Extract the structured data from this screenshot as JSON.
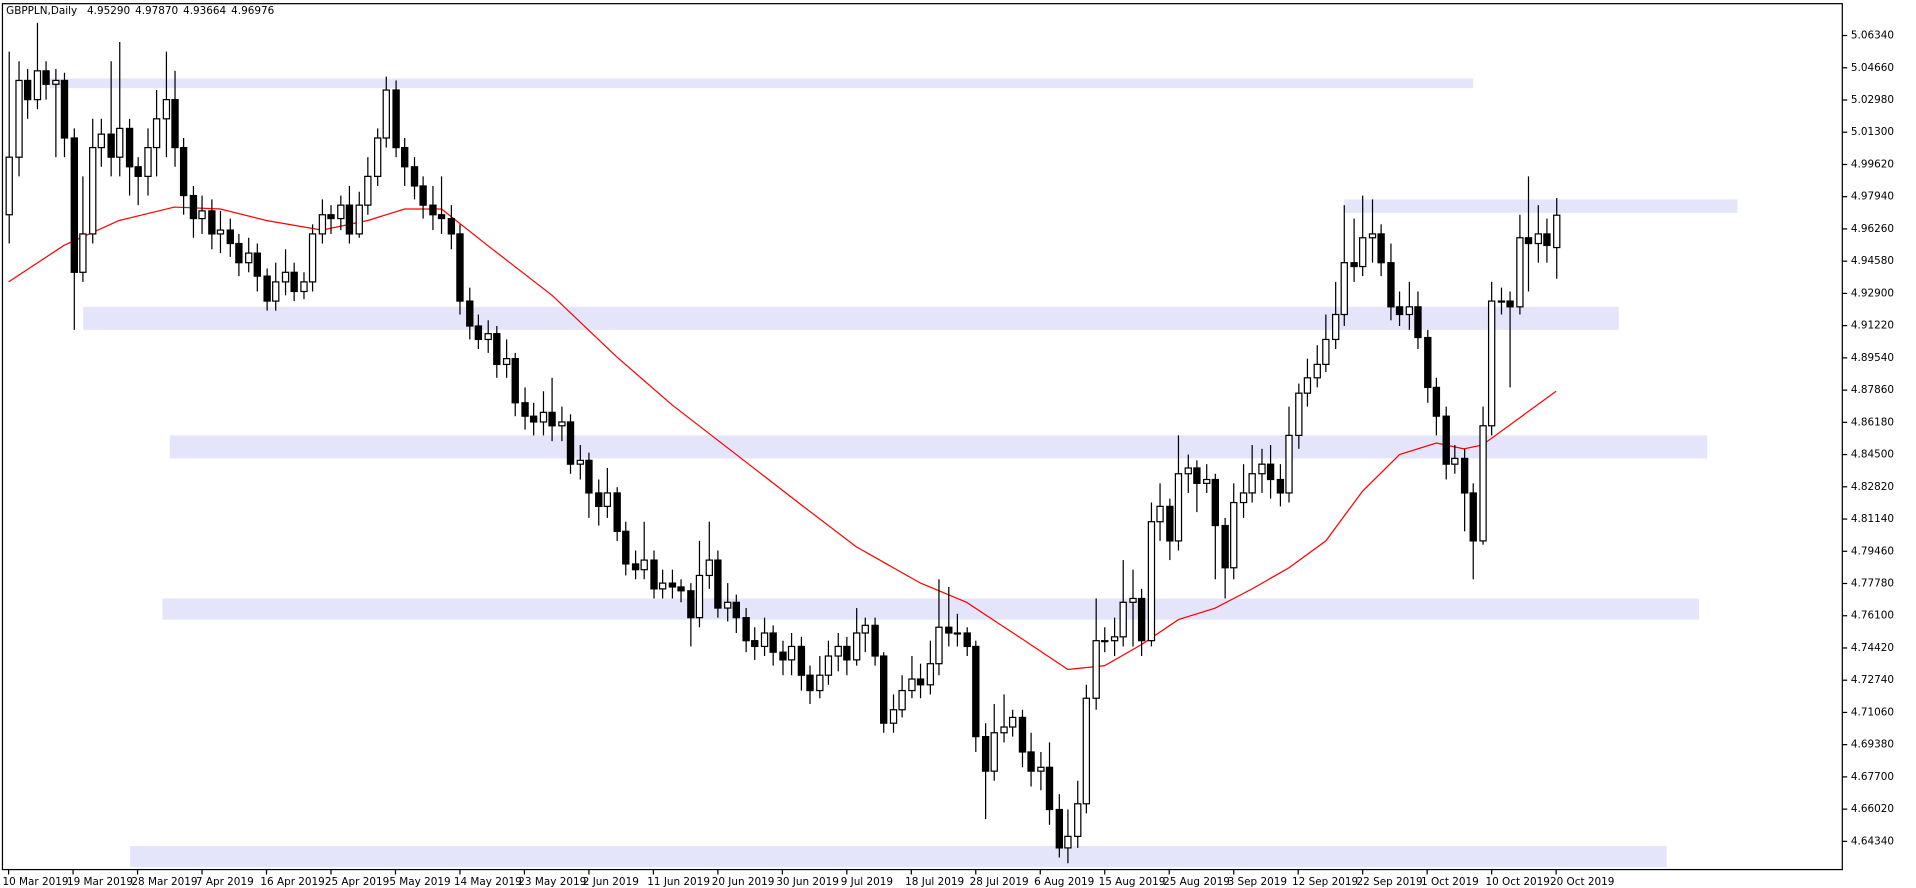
{
  "chart_data": {
    "type": "candlestick",
    "title": "GBPPLN,Daily",
    "header_values": [
      {
        "value": 4.9529,
        "label": "4.95290"
      },
      {
        "value": 4.9787,
        "label": "4.97870"
      },
      {
        "value": 4.93664,
        "label": "4.93664"
      },
      {
        "value": 4.96976,
        "label": "4.96976"
      }
    ],
    "up_color": "#ffffff",
    "down_color": "#000000",
    "outline_color": "#000000",
    "xlim": [
      -0.667,
      199.07
    ],
    "ylim": [
      4.6287,
      5.08
    ],
    "xticks": [
      {
        "value": 0,
        "label": "10 Mar 2019"
      },
      {
        "value": 7,
        "label": "19 Mar 2019"
      },
      {
        "value": 14,
        "label": "28 Mar 2019"
      },
      {
        "value": 21,
        "label": "7 Apr 2019"
      },
      {
        "value": 28,
        "label": "16 Apr 2019"
      },
      {
        "value": 35,
        "label": "25 Apr 2019"
      },
      {
        "value": 42,
        "label": "5 May 2019"
      },
      {
        "value": 49,
        "label": "14 May 2019"
      },
      {
        "value": 56,
        "label": "23 May 2019"
      },
      {
        "value": 63,
        "label": "2 Jun 2019"
      },
      {
        "value": 70,
        "label": "11 Jun 2019"
      },
      {
        "value": 77,
        "label": "20 Jun 2019"
      },
      {
        "value": 84,
        "label": "30 Jun 2019"
      },
      {
        "value": 91,
        "label": "9 Jul 2019"
      },
      {
        "value": 98,
        "label": "18 Jul 2019"
      },
      {
        "value": 105,
        "label": "28 Jul 2019"
      },
      {
        "value": 112,
        "label": "6 Aug 2019"
      },
      {
        "value": 119,
        "label": "15 Aug 2019"
      },
      {
        "value": 126,
        "label": "25 Aug 2019"
      },
      {
        "value": 133,
        "label": "3 Sep 2019"
      },
      {
        "value": 140,
        "label": "12 Sep 2019"
      },
      {
        "value": 147,
        "label": "22 Sep 2019"
      },
      {
        "value": 154,
        "label": "1 Oct 2019"
      },
      {
        "value": 161,
        "label": "10 Oct 2019"
      },
      {
        "value": 168,
        "label": "20 Oct 2019"
      }
    ],
    "yticks": [
      {
        "value": 5.0634,
        "label": "5.06340"
      },
      {
        "value": 5.0466,
        "label": "5.04660"
      },
      {
        "value": 5.0298,
        "label": "5.02980"
      },
      {
        "value": 5.013,
        "label": "5.01300"
      },
      {
        "value": 4.9962,
        "label": "4.99620"
      },
      {
        "value": 4.9794,
        "label": "4.97940"
      },
      {
        "value": 4.9626,
        "label": "4.96260"
      },
      {
        "value": 4.9458,
        "label": "4.94580"
      },
      {
        "value": 4.929,
        "label": "4.92900"
      },
      {
        "value": 4.9122,
        "label": "4.91220"
      },
      {
        "value": 4.8954,
        "label": "4.89540"
      },
      {
        "value": 4.8786,
        "label": "4.87860"
      },
      {
        "value": 4.8618,
        "label": "4.86180"
      },
      {
        "value": 4.845,
        "label": "4.84500"
      },
      {
        "value": 4.8282,
        "label": "4.82820"
      },
      {
        "value": 4.8114,
        "label": "4.81140"
      },
      {
        "value": 4.7946,
        "label": "4.79460"
      },
      {
        "value": 4.7778,
        "label": "4.77780"
      },
      {
        "value": 4.761,
        "label": "4.76100"
      },
      {
        "value": 4.7442,
        "label": "4.74420"
      },
      {
        "value": 4.7274,
        "label": "4.72740"
      },
      {
        "value": 4.7106,
        "label": "4.71060"
      },
      {
        "value": 4.6938,
        "label": "4.69380"
      },
      {
        "value": 4.677,
        "label": "4.67700"
      },
      {
        "value": 4.6602,
        "label": "4.66020"
      },
      {
        "value": 4.6434,
        "label": "4.64340"
      }
    ],
    "zones": [
      {
        "from": 5.041,
        "to": 5.036,
        "start": 4.4,
        "end": 159,
        "color": "#e4e4fa"
      },
      {
        "from": 4.922,
        "to": 4.91,
        "start": 8.1,
        "end": 174.8,
        "color": "#e4e4fa"
      },
      {
        "from": 4.855,
        "to": 4.843,
        "start": 17.5,
        "end": 184.4,
        "color": "#e4e4fa"
      },
      {
        "from": 4.77,
        "to": 4.759,
        "start": 16.7,
        "end": 183.5,
        "color": "#e4e4fa"
      },
      {
        "from": 4.978,
        "to": 4.971,
        "start": 145,
        "end": 187.7,
        "color": "#e4e4fa"
      },
      {
        "from": 4.641,
        "to": 4.63,
        "start": 13.2,
        "end": 180,
        "color": "#e4e4fa"
      }
    ],
    "ma": {
      "color": "#ff0000",
      "x": [
        0,
        6,
        12,
        18,
        23,
        28,
        34,
        39,
        43,
        47,
        52,
        59,
        66,
        72,
        79,
        86,
        92,
        99,
        104,
        110,
        115,
        119,
        123,
        127,
        131,
        135,
        139,
        143,
        147,
        151,
        155,
        158,
        160,
        164,
        168
      ],
      "values": [
        4.935,
        4.954,
        4.967,
        4.974,
        4.973,
        4.967,
        4.962,
        4.967,
        4.973,
        4.973,
        4.954,
        4.928,
        4.896,
        4.871,
        4.845,
        4.819,
        4.797,
        4.778,
        4.768,
        4.749,
        4.733,
        4.735,
        4.746,
        4.759,
        4.765,
        4.775,
        4.786,
        4.8,
        4.826,
        4.845,
        4.851,
        4.848,
        4.85,
        4.864,
        4.878
      ]
    },
    "open": [
      4.97,
      5.0,
      5.04,
      5.03,
      5.045,
      5.038,
      5.04,
      5.01,
      4.94,
      4.96,
      5.005,
      5.012,
      5.0,
      5.015,
      4.995,
      4.99,
      5.005,
      5.02,
      5.03,
      5.005,
      4.98,
      4.968,
      4.972,
      4.96,
      4.962,
      4.955,
      4.945,
      4.95,
      4.938,
      4.925,
      4.935,
      4.94,
      4.93,
      4.935,
      4.96,
      4.97,
      4.968,
      4.975,
      4.96,
      4.975,
      4.99,
      5.01,
      5.035,
      5.005,
      4.995,
      4.985,
      4.975,
      4.97,
      4.968,
      4.96,
      4.925,
      4.912,
      4.905,
      4.908,
      4.892,
      4.895,
      4.872,
      4.865,
      4.862,
      4.867,
      4.86,
      4.862,
      4.84,
      4.842,
      4.825,
      4.818,
      4.825,
      4.805,
      4.788,
      4.785,
      4.79,
      4.775,
      4.778,
      4.776,
      4.774,
      4.76,
      4.782,
      4.79,
      4.765,
      4.768,
      4.76,
      4.748,
      4.745,
      4.752,
      4.742,
      4.738,
      4.745,
      4.73,
      4.722,
      4.73,
      4.74,
      4.745,
      4.738,
      4.752,
      4.756,
      4.74,
      4.705,
      4.712,
      4.722,
      4.728,
      4.725,
      4.736,
      4.755,
      4.752,
      4.752,
      4.745,
      4.698,
      4.68,
      4.7,
      4.703,
      4.708,
      4.69,
      4.68,
      4.682,
      4.66,
      4.64,
      4.646,
      4.663,
      4.718,
      4.748,
      4.748,
      4.75,
      4.768,
      4.77,
      4.748,
      4.81,
      4.818,
      4.8,
      4.835,
      4.838,
      4.83,
      4.832,
      4.808,
      4.786,
      4.82,
      4.825,
      4.835,
      4.84,
      4.832,
      4.825,
      4.855,
      4.877,
      4.885,
      4.892,
      4.905,
      4.918,
      4.945,
      4.943,
      4.958,
      4.96,
      4.945,
      4.922,
      4.918,
      4.922,
      4.906,
      4.88,
      4.865,
      4.84,
      4.843,
      4.825,
      4.8,
      4.86,
      4.925,
      4.925,
      4.922,
      4.958,
      4.955,
      4.96,
      4.9529
    ],
    "high": [
      5.055,
      5.05,
      5.046,
      5.07,
      5.05,
      5.046,
      5.044,
      5.015,
      4.99,
      5.02,
      5.02,
      5.05,
      5.06,
      5.02,
      5.0,
      5.015,
      5.035,
      5.055,
      5.045,
      5.01,
      4.985,
      4.98,
      4.978,
      4.972,
      4.968,
      4.96,
      4.958,
      4.955,
      4.942,
      4.945,
      4.952,
      4.945,
      4.94,
      4.965,
      4.978,
      4.975,
      4.98,
      4.985,
      4.982,
      5.0,
      5.015,
      5.042,
      5.04,
      5.01,
      5.0,
      4.99,
      4.985,
      4.99,
      4.975,
      4.965,
      4.932,
      4.918,
      4.915,
      4.912,
      4.905,
      4.898,
      4.88,
      4.872,
      4.878,
      4.885,
      4.87,
      4.866,
      4.85,
      4.846,
      4.832,
      4.838,
      4.828,
      4.81,
      4.795,
      4.81,
      4.795,
      4.785,
      4.785,
      4.78,
      4.778,
      4.8,
      4.81,
      4.795,
      4.778,
      4.772,
      4.765,
      4.755,
      4.76,
      4.756,
      4.748,
      4.752,
      4.75,
      4.735,
      4.74,
      4.748,
      4.752,
      4.75,
      4.765,
      4.76,
      4.76,
      4.742,
      4.72,
      4.73,
      4.74,
      4.736,
      4.748,
      4.78,
      4.776,
      4.762,
      4.755,
      4.748,
      4.705,
      4.715,
      4.72,
      4.712,
      4.712,
      4.7,
      4.69,
      4.695,
      4.668,
      4.66,
      4.675,
      4.725,
      4.77,
      4.755,
      4.76,
      4.79,
      4.785,
      4.775,
      4.82,
      4.83,
      4.822,
      4.855,
      4.845,
      4.842,
      4.84,
      4.835,
      4.812,
      4.83,
      4.84,
      4.85,
      4.848,
      4.85,
      4.84,
      4.87,
      4.882,
      4.895,
      4.902,
      4.918,
      4.935,
      4.975,
      4.968,
      4.98,
      4.978,
      4.965,
      4.955,
      4.93,
      4.935,
      4.93,
      4.91,
      4.885,
      4.87,
      4.85,
      4.848,
      4.83,
      4.87,
      4.935,
      4.932,
      4.93,
      4.97,
      4.99,
      4.975,
      4.968,
      4.9787
    ],
    "low": [
      4.955,
      4.99,
      5.02,
      5.025,
      5.03,
      5.0,
      5.0,
      4.91,
      4.935,
      4.955,
      4.995,
      4.99,
      4.99,
      4.98,
      4.975,
      4.98,
      4.99,
      5.0,
      4.995,
      4.97,
      4.958,
      4.96,
      4.952,
      4.95,
      4.948,
      4.938,
      4.94,
      4.93,
      4.92,
      4.92,
      4.928,
      4.925,
      4.926,
      4.93,
      4.955,
      4.96,
      4.962,
      4.955,
      4.958,
      4.97,
      4.985,
      5.005,
      5.0,
      4.985,
      4.978,
      4.968,
      4.962,
      4.96,
      4.952,
      4.918,
      4.905,
      4.9,
      4.898,
      4.885,
      4.885,
      4.865,
      4.858,
      4.855,
      4.855,
      4.852,
      4.852,
      4.835,
      4.832,
      4.812,
      4.808,
      4.812,
      4.8,
      4.782,
      4.78,
      4.78,
      4.77,
      4.77,
      4.77,
      4.768,
      4.745,
      4.755,
      4.775,
      4.76,
      4.758,
      4.752,
      4.742,
      4.738,
      4.74,
      4.735,
      4.73,
      4.73,
      4.722,
      4.715,
      4.718,
      4.725,
      4.732,
      4.73,
      4.735,
      4.742,
      4.735,
      4.7,
      4.7,
      4.708,
      4.718,
      4.718,
      4.72,
      4.73,
      4.745,
      4.745,
      4.74,
      4.69,
      4.655,
      4.675,
      4.695,
      4.698,
      4.682,
      4.672,
      4.67,
      4.652,
      4.635,
      4.632,
      4.64,
      4.658,
      4.712,
      4.742,
      4.74,
      4.745,
      4.745,
      4.74,
      4.745,
      4.8,
      4.79,
      4.795,
      4.825,
      4.815,
      4.825,
      4.78,
      4.77,
      4.78,
      4.812,
      4.82,
      4.825,
      4.822,
      4.818,
      4.82,
      4.848,
      4.87,
      4.88,
      4.888,
      4.9,
      4.912,
      4.935,
      4.938,
      4.945,
      4.938,
      4.915,
      4.912,
      4.91,
      4.9,
      4.872,
      4.855,
      4.832,
      4.835,
      4.805,
      4.78,
      4.798,
      4.855,
      4.918,
      4.88,
      4.918,
      4.93,
      4.945,
      4.945,
      4.93664
    ],
    "close": [
      5.0,
      5.04,
      5.03,
      5.045,
      5.038,
      5.04,
      5.01,
      4.94,
      4.96,
      5.005,
      5.012,
      5.0,
      5.015,
      4.995,
      4.99,
      5.005,
      5.02,
      5.03,
      5.005,
      4.98,
      4.968,
      4.972,
      4.96,
      4.962,
      4.955,
      4.945,
      4.95,
      4.938,
      4.925,
      4.935,
      4.94,
      4.93,
      4.935,
      4.96,
      4.97,
      4.968,
      4.975,
      4.96,
      4.975,
      4.99,
      5.01,
      5.035,
      5.005,
      4.995,
      4.985,
      4.975,
      4.97,
      4.968,
      4.96,
      4.925,
      4.912,
      4.905,
      4.908,
      4.892,
      4.895,
      4.872,
      4.865,
      4.862,
      4.867,
      4.86,
      4.862,
      4.84,
      4.842,
      4.825,
      4.818,
      4.825,
      4.805,
      4.788,
      4.785,
      4.79,
      4.775,
      4.778,
      4.776,
      4.774,
      4.76,
      4.782,
      4.79,
      4.765,
      4.768,
      4.76,
      4.748,
      4.745,
      4.752,
      4.742,
      4.738,
      4.745,
      4.73,
      4.722,
      4.73,
      4.74,
      4.745,
      4.738,
      4.752,
      4.756,
      4.74,
      4.705,
      4.712,
      4.722,
      4.728,
      4.725,
      4.736,
      4.755,
      4.752,
      4.752,
      4.745,
      4.698,
      4.68,
      4.7,
      4.703,
      4.708,
      4.69,
      4.68,
      4.682,
      4.66,
      4.64,
      4.646,
      4.663,
      4.718,
      4.748,
      4.748,
      4.75,
      4.768,
      4.77,
      4.748,
      4.81,
      4.818,
      4.8,
      4.835,
      4.838,
      4.83,
      4.832,
      4.808,
      4.786,
      4.82,
      4.825,
      4.835,
      4.84,
      4.832,
      4.825,
      4.855,
      4.877,
      4.885,
      4.892,
      4.905,
      4.918,
      4.945,
      4.943,
      4.958,
      4.96,
      4.945,
      4.922,
      4.918,
      4.922,
      4.906,
      4.88,
      4.865,
      4.84,
      4.843,
      4.825,
      4.8,
      4.86,
      4.925,
      4.925,
      4.922,
      4.958,
      4.955,
      4.96,
      4.954,
      4.96976
    ]
  }
}
